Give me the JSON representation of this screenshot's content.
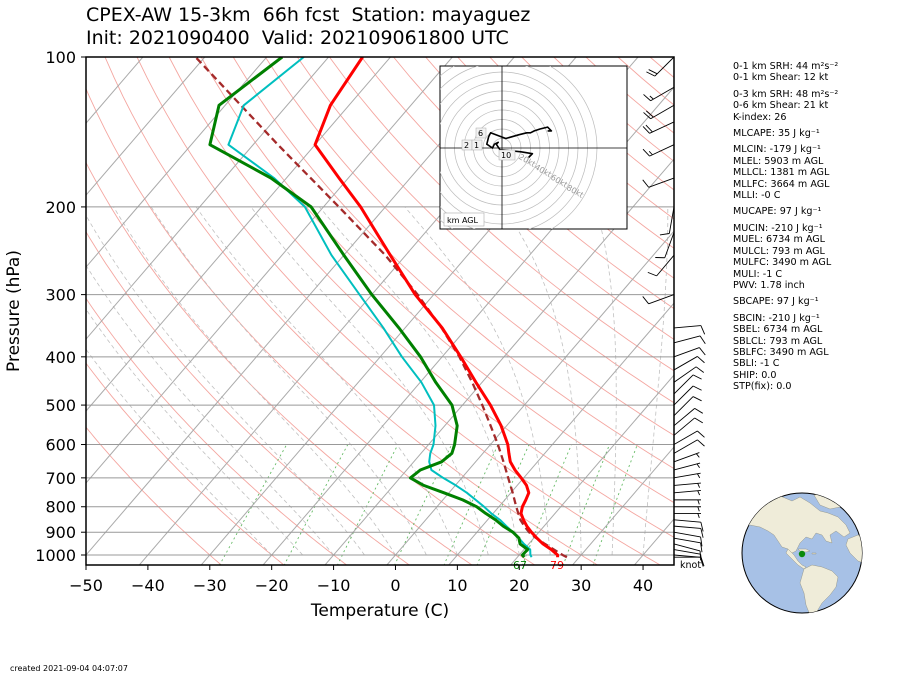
{
  "header": {
    "title_line1": "CPEX-AW 15-3km  66h fcst  Station: mayaguez",
    "title_line2": "Init: 2021090400  Valid: 202109061800 UTC"
  },
  "footer": {
    "created": "created 2021-09-04 04:07:07"
  },
  "wind_unit_label": "knot",
  "indices": [
    {
      "text": "0-1 km SRH: 44 m²s⁻²",
      "gap": true
    },
    {
      "text": "0-1 km Shear: 12 kt",
      "gap": false
    },
    {
      "text": "0-3 km SRH: 48 m²s⁻²",
      "gap": true
    },
    {
      "text": "0-6 km Shear: 21 kt",
      "gap": false
    },
    {
      "text": "K-index: 26",
      "gap": false
    },
    {
      "text": "MLCAPE: 35 J kg⁻¹",
      "gap": true
    },
    {
      "text": "MLCIN: -179 J kg⁻¹",
      "gap": true
    },
    {
      "text": "MLEL: 5903 m AGL",
      "gap": false
    },
    {
      "text": "MLLCL: 1381 m AGL",
      "gap": false
    },
    {
      "text": "MLLFC: 3664 m AGL",
      "gap": false
    },
    {
      "text": "MLLI: -0 C",
      "gap": false
    },
    {
      "text": "MUCAPE: 97 J kg⁻¹",
      "gap": true
    },
    {
      "text": "MUCIN: -210 J kg⁻¹",
      "gap": true
    },
    {
      "text": "MUEL: 6734 m AGL",
      "gap": false
    },
    {
      "text": "MULCL: 793 m AGL",
      "gap": false
    },
    {
      "text": "MULFC: 3490 m AGL",
      "gap": false
    },
    {
      "text": "MULI: -1 C",
      "gap": false
    },
    {
      "text": "PWV: 1.78 inch",
      "gap": false
    },
    {
      "text": "SBCAPE: 97 J kg⁻¹",
      "gap": true
    },
    {
      "text": "SBCIN: -210 J kg⁻¹",
      "gap": true
    },
    {
      "text": "SBEL: 6734 m AGL",
      "gap": false
    },
    {
      "text": "SBLCL: 793 m AGL",
      "gap": false
    },
    {
      "text": "SBLFC: 3490 m AGL",
      "gap": false
    },
    {
      "text": "SBLI: -1 C",
      "gap": false
    },
    {
      "text": "SHIP: 0.0",
      "gap": false
    },
    {
      "text": "STP(fix): 0.0",
      "gap": false
    }
  ],
  "chart_data": {
    "type": "skew-t",
    "xlabel": "Temperature (C)",
    "ylabel": "Pressure (hPa)",
    "xlim": [
      -50,
      45
    ],
    "ylim": [
      1050,
      100
    ],
    "x_ticks": [
      -50,
      -40,
      -30,
      -20,
      -10,
      0,
      10,
      20,
      30,
      40
    ],
    "y_ticks": [
      100,
      200,
      300,
      400,
      500,
      600,
      700,
      800,
      900,
      1000
    ],
    "colors": {
      "temperature": "#ff0000",
      "dewpoint": "#008000",
      "virtual_temperature": "#00bfbf",
      "parcel": "#a52a2a",
      "dry_adiabat": "#f4a6a0",
      "moist_adiabat": "#c0c0c0",
      "mixing_ratio": "#66bb66",
      "isotherm": "#aaaaaa"
    },
    "series": [
      {
        "key": "temperature",
        "p": [
          1010,
          1000,
          975,
          950,
          925,
          900,
          875,
          850,
          825,
          800,
          775,
          750,
          725,
          700,
          675,
          650,
          625,
          600,
          550,
          500,
          450,
          400,
          350,
          300,
          250,
          200,
          175,
          150,
          125,
          100
        ],
        "t": [
          26.5,
          26.2,
          24.4,
          22.3,
          20.5,
          18.8,
          17.2,
          15.8,
          14.5,
          13.8,
          13.4,
          12.9,
          11.5,
          9.6,
          7.5,
          5.6,
          4.2,
          2.8,
          -0.9,
          -5.5,
          -11.0,
          -17.0,
          -24.0,
          -33.0,
          -42.5,
          -54.0,
          -61.5,
          -70.0,
          -73.0,
          -74.5
        ]
      },
      {
        "key": "dewpoint",
        "p": [
          1010,
          1000,
          975,
          950,
          925,
          900,
          875,
          850,
          825,
          800,
          775,
          750,
          725,
          700,
          675,
          650,
          625,
          600,
          550,
          500,
          450,
          400,
          350,
          300,
          250,
          200,
          175,
          150,
          125,
          100
        ],
        "t": [
          21.1,
          20.5,
          20.6,
          18.6,
          17.6,
          15.8,
          13.4,
          11.3,
          8.8,
          6.4,
          3.2,
          -0.8,
          -5.1,
          -8.3,
          -7.8,
          -5.5,
          -5.0,
          -5.8,
          -8.0,
          -11.7,
          -17.5,
          -23.5,
          -31.0,
          -40.0,
          -50.0,
          -62.0,
          -72.5,
          -87.0,
          -91.0,
          -87.5
        ]
      },
      {
        "key": "virtual_temperature",
        "p": [
          1010,
          1000,
          975,
          950,
          925,
          900,
          875,
          850,
          825,
          800,
          775,
          750,
          725,
          700,
          675,
          650,
          625,
          600,
          550,
          500,
          450,
          400,
          350,
          300,
          250,
          200,
          175,
          150,
          125,
          100
        ],
        "t": [
          22.3,
          21.8,
          21.0,
          19.2,
          17.6,
          15.8,
          13.9,
          12.0,
          9.7,
          7.6,
          5.3,
          2.9,
          0.1,
          -3.0,
          -6.0,
          -7.5,
          -8.5,
          -9.2,
          -11.5,
          -14.6,
          -19.8,
          -26.5,
          -33.5,
          -42.0,
          -52.0,
          -63.0,
          -72.0,
          -84.0,
          -87.0,
          -84.0
        ]
      },
      {
        "key": "parcel",
        "p": [
          1010,
          1000,
          950,
          925,
          900,
          875,
          850,
          800,
          750,
          700,
          650,
          600,
          550,
          500,
          450,
          400,
          350,
          300,
          250,
          200,
          150,
          100
        ],
        "t": [
          28.0,
          27.0,
          22.6,
          20.4,
          18.4,
          16.8,
          15.3,
          12.8,
          10.3,
          7.5,
          4.5,
          1.2,
          -2.6,
          -6.8,
          -11.6,
          -17.2,
          -24.1,
          -32.6,
          -43.3,
          -57.5,
          -76.0,
          -101.5
        ]
      }
    ],
    "annotations": [
      "67",
      "79"
    ],
    "hodograph": {
      "u": [
        14,
        16,
        10,
        0,
        -1,
        -3,
        -2,
        -4,
        -5,
        -8,
        -7,
        -6,
        2,
        9,
        13,
        15,
        17,
        20,
        24,
        26,
        24
      ],
      "v": [
        -5,
        -3,
        -2,
        -1,
        -1,
        2,
        3,
        2,
        0,
        2,
        6,
        8,
        5,
        7,
        8,
        8,
        9,
        10,
        11,
        9,
        9
      ],
      "ring_labels": [
        "20kt",
        "40kt",
        "60kt",
        "80kt"
      ],
      "height_labels": [
        "6",
        "2",
        "1",
        "10"
      ],
      "legend": "km AGL"
    },
    "wind_barbs": [
      {
        "p": 1010,
        "dir": 90,
        "spd": 8
      },
      {
        "p": 1000,
        "dir": 95,
        "spd": 10
      },
      {
        "p": 975,
        "dir": 100,
        "spd": 12
      },
      {
        "p": 950,
        "dir": 105,
        "spd": 12
      },
      {
        "p": 925,
        "dir": 100,
        "spd": 10
      },
      {
        "p": 900,
        "dir": 100,
        "spd": 10
      },
      {
        "p": 875,
        "dir": 95,
        "spd": 9
      },
      {
        "p": 850,
        "dir": 95,
        "spd": 8
      },
      {
        "p": 825,
        "dir": 90,
        "spd": 7
      },
      {
        "p": 800,
        "dir": 90,
        "spd": 7
      },
      {
        "p": 775,
        "dir": 90,
        "spd": 6
      },
      {
        "p": 750,
        "dir": 85,
        "spd": 6
      },
      {
        "p": 725,
        "dir": 85,
        "spd": 6
      },
      {
        "p": 700,
        "dir": 80,
        "spd": 6
      },
      {
        "p": 675,
        "dir": 75,
        "spd": 6
      },
      {
        "p": 650,
        "dir": 70,
        "spd": 7
      },
      {
        "p": 625,
        "dir": 60,
        "spd": 8
      },
      {
        "p": 600,
        "dir": 60,
        "spd": 9
      },
      {
        "p": 575,
        "dir": 50,
        "spd": 10
      },
      {
        "p": 550,
        "dir": 50,
        "spd": 10
      },
      {
        "p": 525,
        "dir": 45,
        "spd": 10
      },
      {
        "p": 500,
        "dir": 45,
        "spd": 9
      },
      {
        "p": 475,
        "dir": 45,
        "spd": 9
      },
      {
        "p": 450,
        "dir": 55,
        "spd": 8
      },
      {
        "p": 425,
        "dir": 60,
        "spd": 9
      },
      {
        "p": 400,
        "dir": 70,
        "spd": 9
      },
      {
        "p": 375,
        "dir": 75,
        "spd": 8
      },
      {
        "p": 350,
        "dir": 85,
        "spd": 8
      },
      {
        "p": 300,
        "dir": 250,
        "spd": 12
      },
      {
        "p": 250,
        "dir": 220,
        "spd": 10
      },
      {
        "p": 225,
        "dir": 200,
        "spd": 10
      },
      {
        "p": 200,
        "dir": 190,
        "spd": 9
      },
      {
        "p": 175,
        "dir": 250,
        "spd": 12
      },
      {
        "p": 150,
        "dir": 245,
        "spd": 16
      },
      {
        "p": 135,
        "dir": 245,
        "spd": 20
      },
      {
        "p": 125,
        "dir": 240,
        "spd": 18
      },
      {
        "p": 115,
        "dir": 240,
        "spd": 16
      },
      {
        "p": 100,
        "dir": 225,
        "spd": 18
      }
    ]
  }
}
